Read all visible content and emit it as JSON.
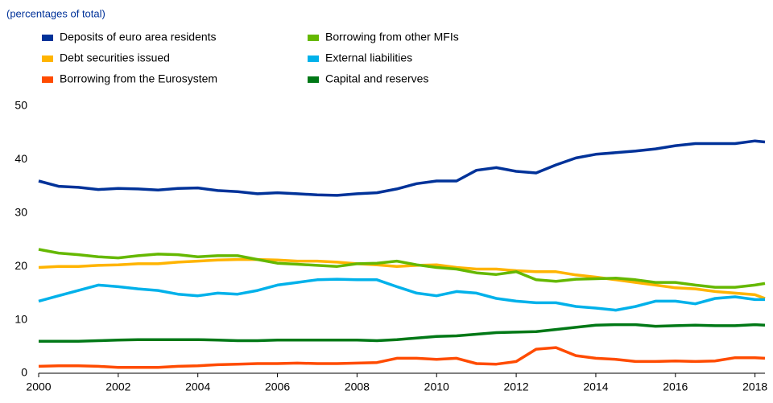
{
  "chart_data": {
    "type": "line",
    "subtitle": "(percentages of total)",
    "x": [
      2000,
      2000.5,
      2001,
      2001.5,
      2002,
      2002.5,
      2003,
      2003.5,
      2004,
      2004.5,
      2005,
      2005.5,
      2006,
      2006.5,
      2007,
      2007.5,
      2008,
      2008.5,
      2009,
      2009.5,
      2010,
      2010.5,
      2011,
      2011.5,
      2012,
      2012.5,
      2013,
      2013.5,
      2014,
      2014.5,
      2015,
      2015.5,
      2016,
      2016.5,
      2017,
      2017.5,
      2018,
      2018.25
    ],
    "series": [
      {
        "name": "Deposits of euro area residents",
        "color": "#003299",
        "values": [
          36,
          35,
          34.8,
          34.4,
          34.6,
          34.5,
          34.3,
          34.6,
          34.7,
          34.2,
          34,
          33.6,
          33.8,
          33.6,
          33.4,
          33.3,
          33.6,
          33.8,
          34.5,
          35.5,
          36,
          36,
          38,
          38.5,
          37.8,
          37.5,
          39,
          40.3,
          41,
          41.3,
          41.6,
          42,
          42.6,
          43,
          43,
          43,
          43.5,
          43.3
        ]
      },
      {
        "name": "Debt securities issued",
        "color": "#ffb400",
        "values": [
          19.8,
          20,
          20,
          20.2,
          20.3,
          20.5,
          20.5,
          20.8,
          21,
          21.2,
          21.3,
          21.3,
          21.2,
          21,
          21,
          20.8,
          20.5,
          20.3,
          20,
          20.2,
          20.3,
          19.8,
          19.5,
          19.5,
          19.2,
          19,
          19,
          18.4,
          18,
          17.5,
          17,
          16.5,
          16,
          15.8,
          15.3,
          15,
          14.7,
          14
        ]
      },
      {
        "name": "Borrowing from the Eurosystem",
        "color": "#ff4b00",
        "values": [
          1.3,
          1.4,
          1.4,
          1.3,
          1.1,
          1.1,
          1.1,
          1.3,
          1.4,
          1.6,
          1.7,
          1.8,
          1.8,
          1.9,
          1.8,
          1.8,
          1.9,
          2,
          2.8,
          2.8,
          2.6,
          2.8,
          1.8,
          1.7,
          2.2,
          4.5,
          4.8,
          3.3,
          2.8,
          2.6,
          2.2,
          2.2,
          2.3,
          2.2,
          2.3,
          2.9,
          2.9,
          2.8
        ]
      },
      {
        "name": "Borrowing from other MFIs",
        "color": "#65b800",
        "values": [
          23.2,
          22.5,
          22.2,
          21.8,
          21.6,
          22,
          22.3,
          22.2,
          21.8,
          22,
          22,
          21.3,
          20.6,
          20.4,
          20.2,
          20,
          20.5,
          20.6,
          21,
          20.3,
          19.8,
          19.5,
          18.8,
          18.5,
          19,
          17.5,
          17.2,
          17.6,
          17.7,
          17.8,
          17.5,
          17,
          17,
          16.5,
          16.1,
          16.1,
          16.5,
          16.8
        ]
      },
      {
        "name": "External liabilities",
        "color": "#00b1ea",
        "values": [
          13.5,
          14.5,
          15.5,
          16.5,
          16.2,
          15.8,
          15.5,
          14.8,
          14.5,
          15,
          14.8,
          15.5,
          16.5,
          17,
          17.5,
          17.6,
          17.5,
          17.5,
          16.2,
          15,
          14.5,
          15.3,
          15,
          14,
          13.5,
          13.2,
          13.2,
          12.5,
          12.2,
          11.8,
          12.5,
          13.5,
          13.5,
          13,
          14,
          14.3,
          13.8,
          13.8
        ]
      },
      {
        "name": "Capital and reserves",
        "color": "#007816",
        "values": [
          6,
          6,
          6,
          6.1,
          6.2,
          6.3,
          6.3,
          6.3,
          6.3,
          6.2,
          6.1,
          6.1,
          6.2,
          6.2,
          6.2,
          6.2,
          6.2,
          6.1,
          6.3,
          6.6,
          6.9,
          7,
          7.3,
          7.6,
          7.7,
          7.8,
          8.2,
          8.6,
          9,
          9.1,
          9.1,
          8.8,
          8.9,
          9,
          8.9,
          8.9,
          9.1,
          9
        ]
      }
    ],
    "xlim": [
      2000,
      2018.25
    ],
    "xticks": [
      2000,
      2002,
      2004,
      2006,
      2008,
      2010,
      2012,
      2014,
      2016,
      2018
    ],
    "ylim": [
      0,
      50
    ],
    "yticks": [
      0,
      10,
      20,
      30,
      40,
      50
    ]
  }
}
